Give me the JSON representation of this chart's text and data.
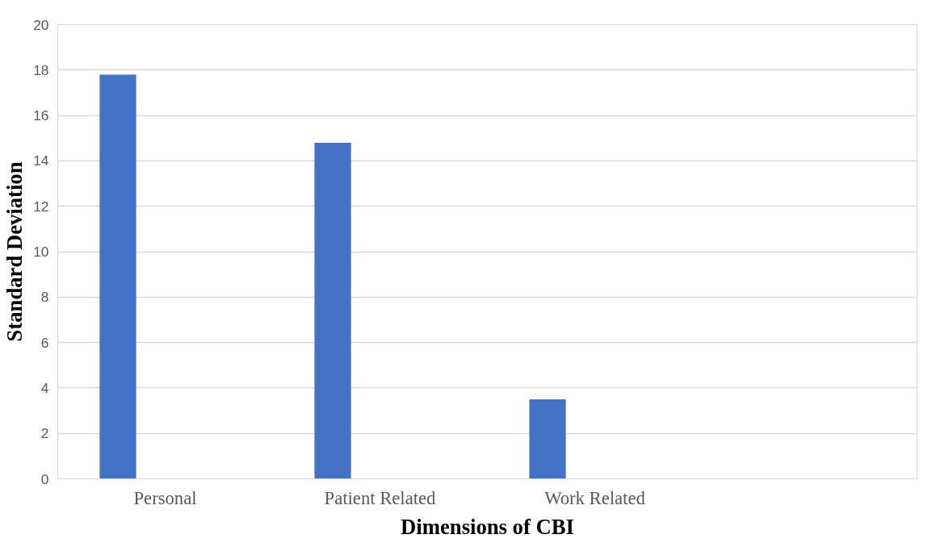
{
  "chart_data": {
    "type": "bar",
    "xlabel": "Dimensions of CBI",
    "ylabel": "Standard Deviation",
    "categories": [
      "Personal",
      "Patient Related",
      "Work Related",
      null
    ],
    "values": [
      17.8,
      14.8,
      3.5,
      null
    ],
    "color": "#4472c4",
    "ylim": [
      0,
      20
    ],
    "yticks": [
      0,
      2,
      4,
      6,
      8,
      10,
      12,
      14,
      16,
      18,
      20
    ],
    "grid": "y"
  }
}
